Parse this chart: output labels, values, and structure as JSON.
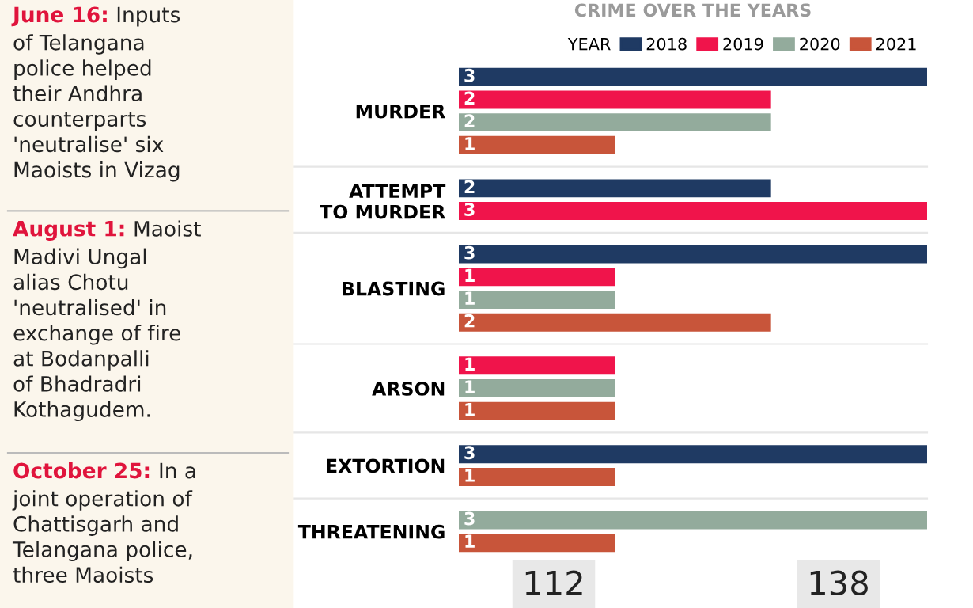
{
  "chart_data": {
    "type": "bar",
    "orientation": "horizontal",
    "title": "CRIME OVER THE YEARS",
    "legend_title": "YEAR",
    "legend": "top right",
    "data_labels": true,
    "grid": false,
    "categories": [
      "MURDER",
      "ATTEMPT\nTO MURDER",
      "BLASTING",
      "ARSON",
      "EXTORTION",
      "THREATENING"
    ],
    "series": [
      {
        "name": "2018",
        "color": "#1f3a63",
        "values": [
          3,
          2,
          3,
          null,
          3,
          null
        ]
      },
      {
        "name": "2019",
        "color": "#f0144b",
        "values": [
          2,
          3,
          1,
          1,
          null,
          null
        ]
      },
      {
        "name": "2020",
        "color": "#93ab9c",
        "values": [
          2,
          null,
          1,
          1,
          null,
          3
        ]
      },
      {
        "name": "2021",
        "color": "#c8553a",
        "values": [
          1,
          null,
          2,
          1,
          1,
          1
        ]
      }
    ],
    "annotations": [
      "June 16: Inputs\nof Telangana\npolice helped\ntheir Andhra\ncounterparts\n'neutralise' six\nMaoists in Vizag",
      "August 1: Maoist\nMadivi Ungal\nalias Chotu\n'neutralised' in\nexchange of fire\nat Bodanpalli\nof Bhadradri\nKothagudem.",
      "October 25: In a\njoint operation of\nChattisgarh and\nTelangana police,\nthree Maoists",
      "112",
      "138"
    ]
  }
}
